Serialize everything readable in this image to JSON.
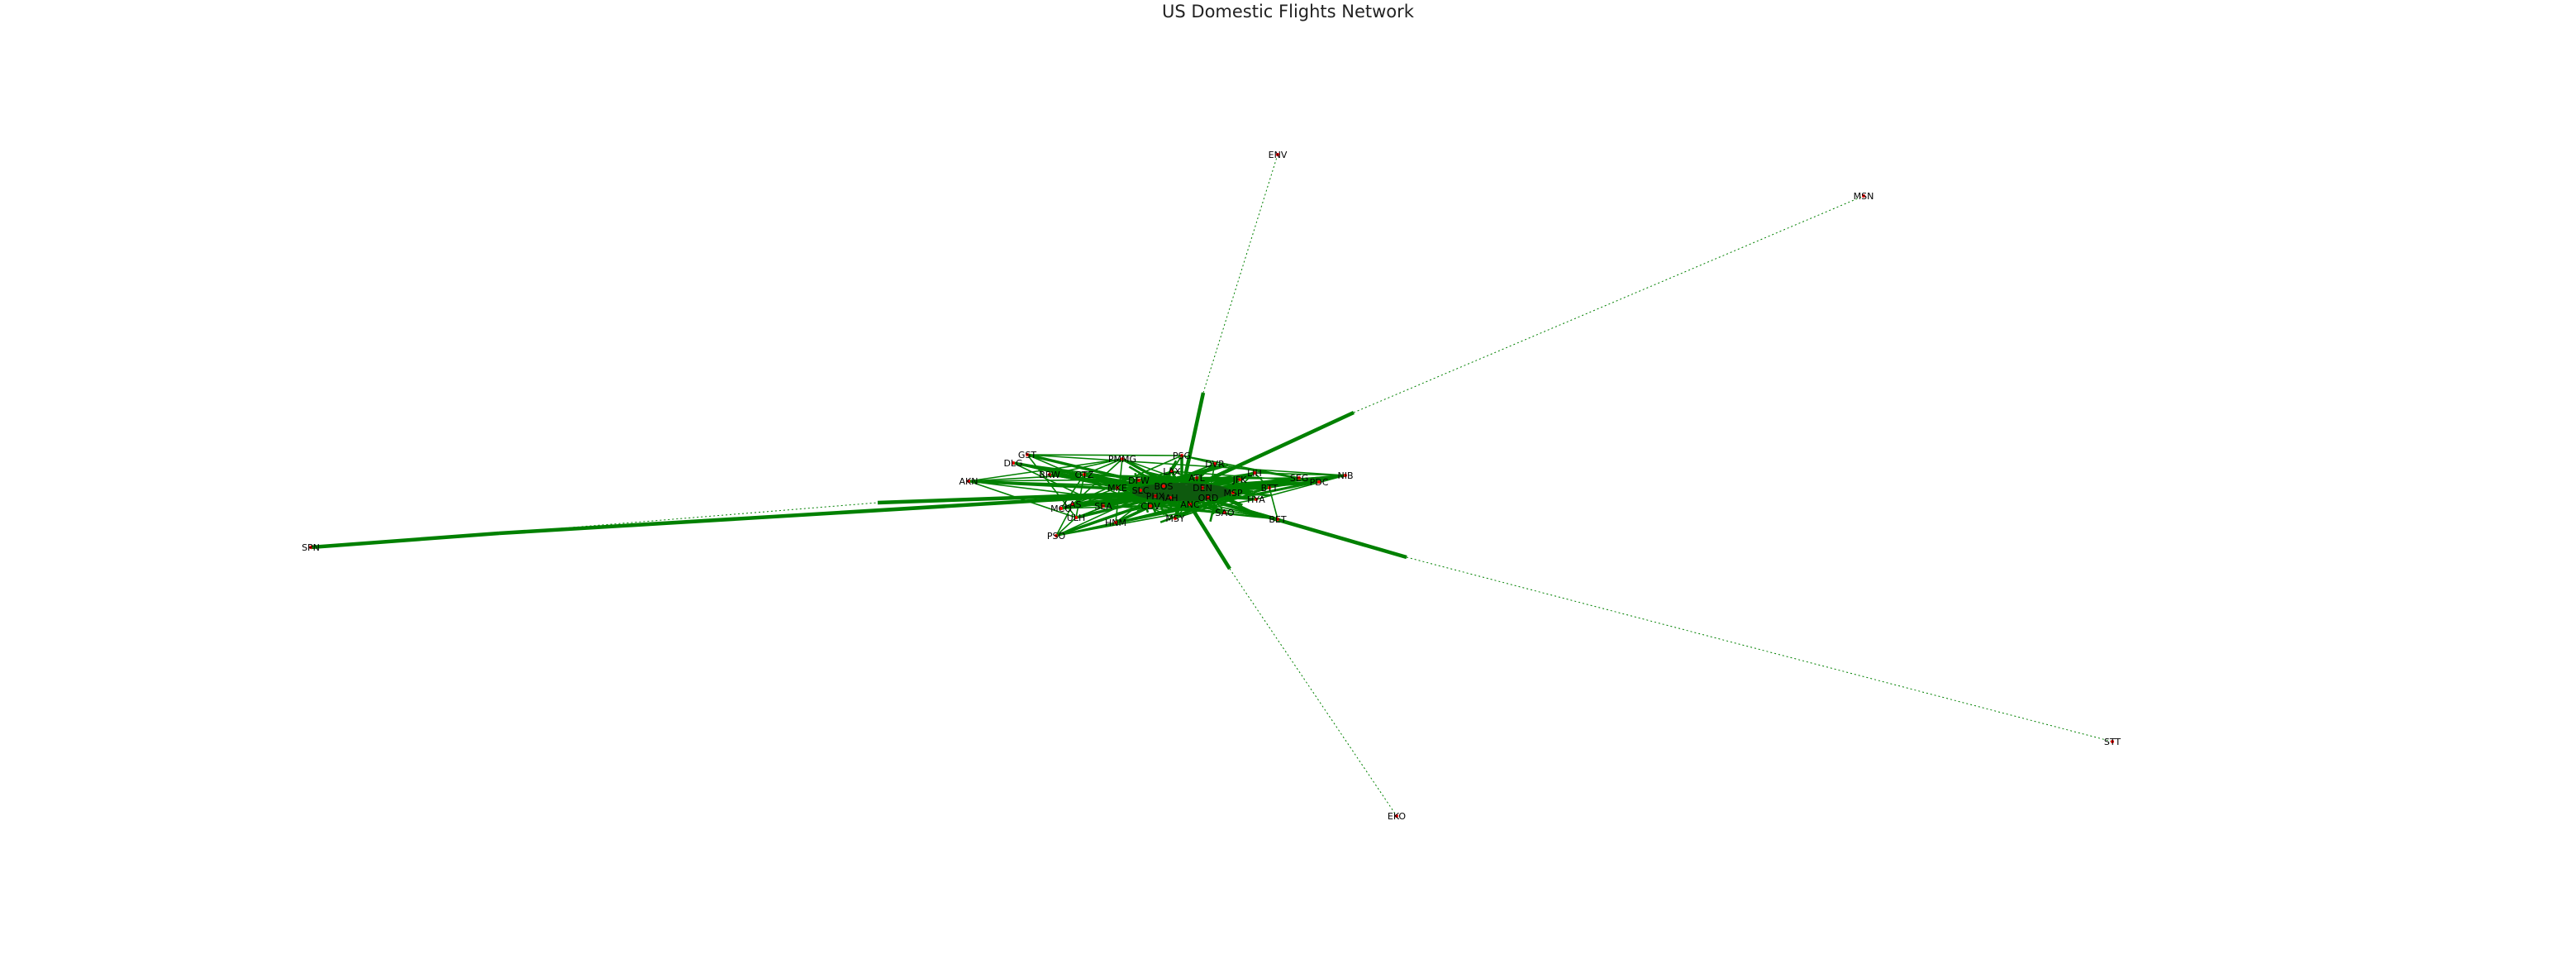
{
  "title": "US Domestic Flights Network",
  "colors": {
    "edge": "#008000",
    "node": "#ff0000",
    "label": "#000000",
    "background": "#ffffff"
  },
  "nodes": [
    {
      "id": "ENV",
      "label": "ENV"
    },
    {
      "id": "MSN",
      "label": "MSN"
    },
    {
      "id": "SPN",
      "label": "SPN"
    },
    {
      "id": "STT",
      "label": "STT"
    },
    {
      "id": "EKO",
      "label": "EKO"
    },
    {
      "id": "AKN",
      "label": "AKN"
    },
    {
      "id": "GST",
      "label": "GST"
    },
    {
      "id": "DLG",
      "label": "DLG"
    },
    {
      "id": "BRW",
      "label": "BRW"
    },
    {
      "id": "PSG",
      "label": "PSG"
    },
    {
      "id": "PMMG",
      "label": "PMMG"
    },
    {
      "id": "DVR",
      "label": "DVR"
    },
    {
      "id": "LIH",
      "label": "LIH"
    },
    {
      "id": "LAS",
      "label": "LAS"
    },
    {
      "id": "MCO",
      "label": "MCO"
    },
    {
      "id": "ULH",
      "label": "ULH"
    },
    {
      "id": "PSO",
      "label": "PSO"
    },
    {
      "id": "MSY",
      "label": "MSY"
    },
    {
      "id": "HNM",
      "label": "HNM"
    },
    {
      "id": "SAO",
      "label": "SAO"
    },
    {
      "id": "SEG",
      "label": "SEG"
    },
    {
      "id": "PDC",
      "label": "PDC"
    },
    {
      "id": "NIB",
      "label": "NIB"
    },
    {
      "id": "HYA",
      "label": "HYA"
    },
    {
      "id": "BET",
      "label": "BET"
    },
    {
      "id": "ORD",
      "label": "ORD"
    },
    {
      "id": "PHX",
      "label": "PHX"
    },
    {
      "id": "BOS",
      "label": "BOS"
    },
    {
      "id": "SLC",
      "label": "SLC"
    },
    {
      "id": "MKE",
      "label": "MKE"
    },
    {
      "id": "DEN",
      "label": "DEN"
    },
    {
      "id": "MSP",
      "label": "MSP"
    },
    {
      "id": "ANC",
      "label": "ANC"
    },
    {
      "id": "LAX",
      "label": "LAX"
    },
    {
      "id": "SEA",
      "label": "SEA"
    },
    {
      "id": "JFK",
      "label": "JFK"
    },
    {
      "id": "OTZ",
      "label": "OTZ"
    },
    {
      "id": "BTT",
      "label": "BTT"
    },
    {
      "id": "CDV",
      "label": "CDV"
    },
    {
      "id": "ATL",
      "label": "ATL"
    },
    {
      "id": "DFW",
      "label": "DFW"
    },
    {
      "id": "IAH",
      "label": "IAH"
    }
  ]
}
